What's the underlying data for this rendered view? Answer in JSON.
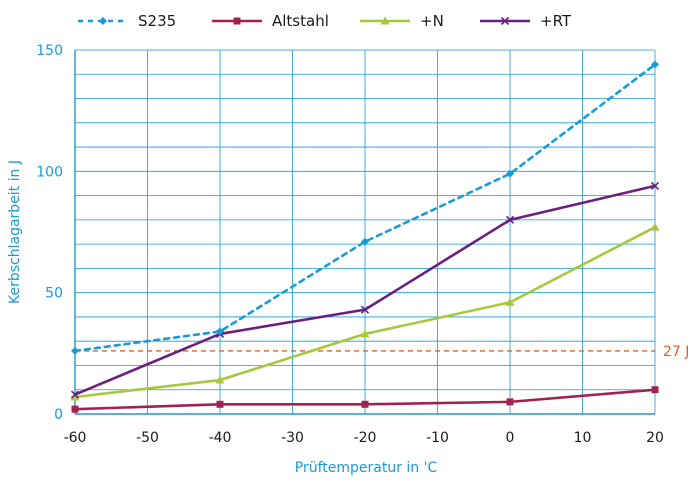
{
  "chart_data": {
    "type": "line",
    "title": "",
    "xlabel": "Prüftemperatur in 'C",
    "ylabel": "Kerbschlagarbeit in J",
    "xlim": [
      -60,
      20
    ],
    "ylim": [
      0,
      150
    ],
    "x_ticks": [
      -60,
      -50,
      -40,
      -30,
      -20,
      -10,
      0,
      10,
      20
    ],
    "y_ticks": [
      0,
      50,
      100,
      150
    ],
    "y_minor_step": 10,
    "grid": true,
    "legend_position": "top",
    "axis_color": "#1a9ad6",
    "series": [
      {
        "name": "S235",
        "color": "#1a9ad6",
        "dashed": true,
        "marker": "diamond",
        "points": [
          [
            -60,
            26
          ],
          [
            -40,
            34
          ],
          [
            -20,
            71
          ],
          [
            0,
            99
          ],
          [
            20,
            144
          ]
        ]
      },
      {
        "name": "Altstahl",
        "color": "#a3214f",
        "dashed": false,
        "marker": "square",
        "points": [
          [
            -60,
            2
          ],
          [
            -40,
            4
          ],
          [
            -20,
            4
          ],
          [
            0,
            5
          ],
          [
            20,
            10
          ]
        ]
      },
      {
        "name": "+N",
        "color": "#a6c83c",
        "dashed": false,
        "marker": "triangle",
        "points": [
          [
            -60,
            7
          ],
          [
            -40,
            14
          ],
          [
            -20,
            33
          ],
          [
            0,
            46
          ],
          [
            20,
            77
          ]
        ]
      },
      {
        "name": "+RT",
        "color": "#6a1f7e",
        "dashed": false,
        "marker": "x",
        "points": [
          [
            -60,
            8
          ],
          [
            -40,
            33
          ],
          [
            -20,
            43
          ],
          [
            0,
            80
          ],
          [
            20,
            94
          ]
        ]
      }
    ],
    "reference_line": {
      "y": 26,
      "label": "27 J",
      "color": "#e06020"
    }
  }
}
